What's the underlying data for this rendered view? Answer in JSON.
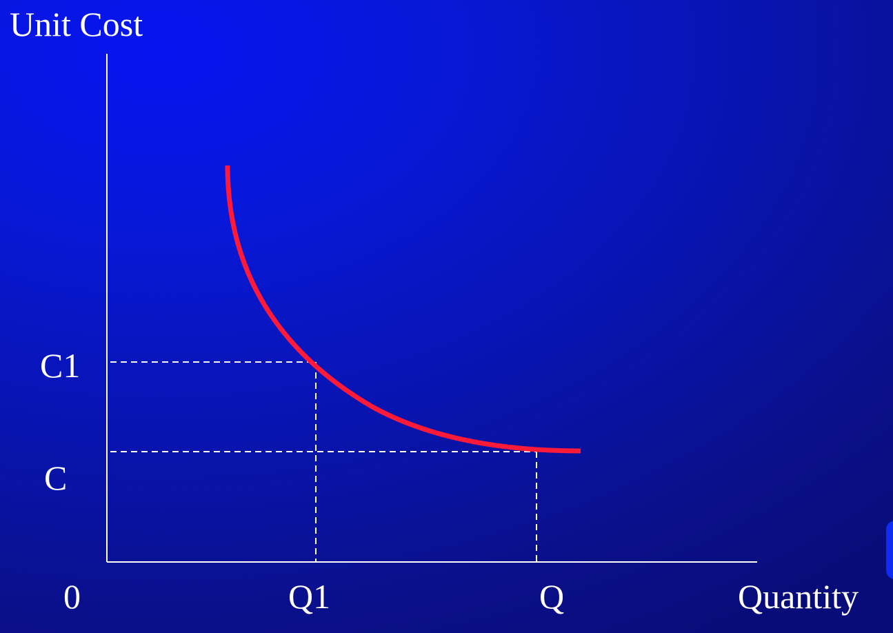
{
  "diagram": {
    "y_axis_label": "Unit Cost",
    "x_axis_label": "Quantity",
    "origin_label": "0",
    "y_ticks": [
      "C1",
      "C"
    ],
    "x_ticks": [
      "Q1",
      "Q"
    ],
    "colors": {
      "background": "#0814b0",
      "curve": "#ff1a3a",
      "axes": "#ffffff",
      "guides": "#ffffff"
    }
  }
}
